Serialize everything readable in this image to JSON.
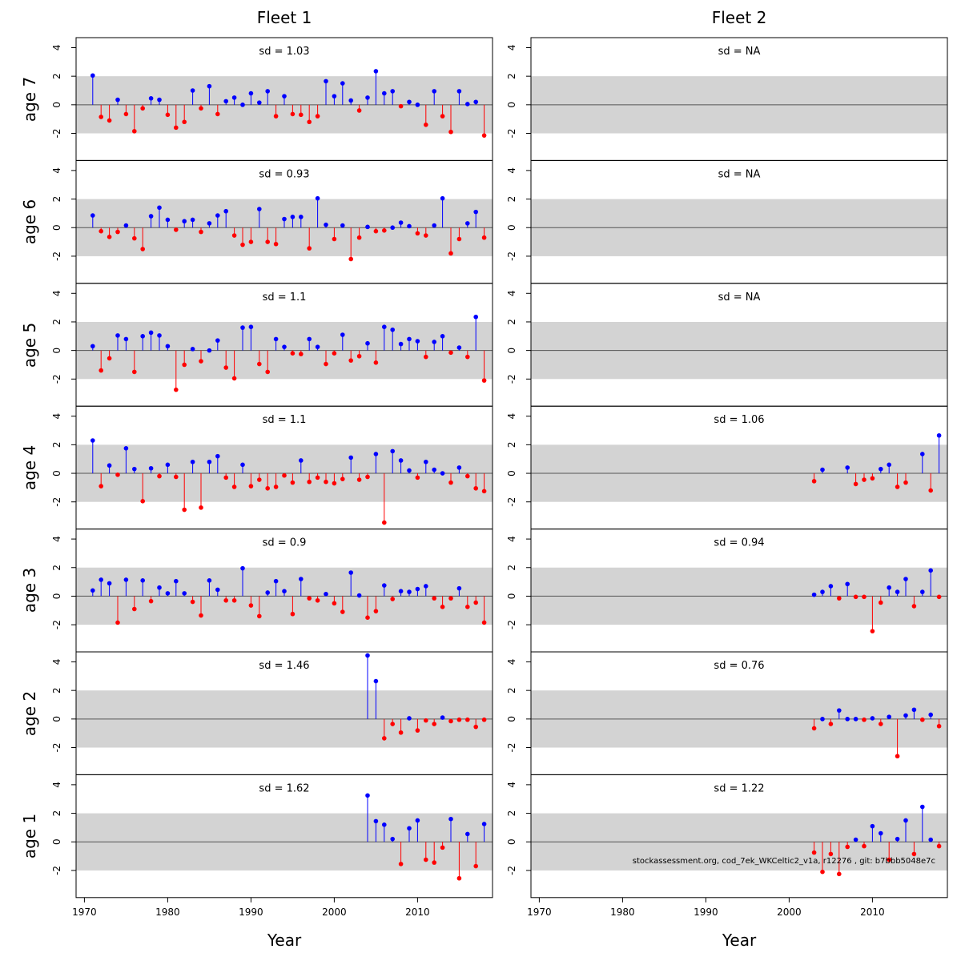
{
  "chart_data": {
    "type": "residual-lollipop-grid",
    "columns": [
      {
        "title": "Fleet 1"
      },
      {
        "title": "Fleet 2"
      }
    ],
    "rows": [
      "age 7",
      "age 6",
      "age 5",
      "age 4",
      "age 3",
      "age 2",
      "age 1"
    ],
    "xlabel": "Year",
    "xlim": [
      1969,
      2019
    ],
    "x_ticks": [
      1970,
      1980,
      1990,
      2000,
      2010
    ],
    "ylim": [
      -3.9,
      4.7
    ],
    "y_ticks": [
      -2,
      0,
      2,
      4
    ],
    "band": [
      -2,
      2
    ],
    "colors": {
      "positive": "#0000ff",
      "negative": "#ff0000",
      "band": "#d3d3d3"
    },
    "footer_text": "stockassessment.org, cod_7ek_WKCeltic2_v1a, r12276 , git: b7bbb5048e7c",
    "panels": [
      [
        {
          "sd_label": "sd = 1.03",
          "years": [
            1971,
            1972,
            1973,
            1974,
            1975,
            1976,
            1977,
            1978,
            1979,
            1980,
            1981,
            1982,
            1983,
            1984,
            1985,
            1986,
            1987,
            1988,
            1989,
            1990,
            1991,
            1992,
            1993,
            1994,
            1995,
            1996,
            1997,
            1998,
            1999,
            2000,
            2001,
            2002,
            2003,
            2004,
            2005,
            2006,
            2007,
            2008,
            2009,
            2010,
            2011,
            2012,
            2013,
            2014,
            2015,
            2016,
            2017,
            2018
          ],
          "values": [
            2.05,
            -0.85,
            -1.1,
            0.35,
            -0.65,
            -1.85,
            -0.25,
            0.45,
            0.35,
            -0.7,
            -1.6,
            -1.2,
            1.0,
            -0.25,
            1.3,
            -0.65,
            0.25,
            0.5,
            0.0,
            0.8,
            0.15,
            0.95,
            -0.8,
            0.6,
            -0.65,
            -0.7,
            -1.2,
            -0.8,
            1.65,
            0.6,
            1.5,
            0.3,
            -0.4,
            0.5,
            2.35,
            0.8,
            0.95,
            -0.1,
            0.2,
            0.0,
            -1.4,
            0.95,
            -0.8,
            -1.9,
            0.95,
            0.05,
            0.2,
            -2.15
          ]
        },
        {
          "sd_label": "sd = 0.93",
          "years": [
            1971,
            1972,
            1973,
            1974,
            1975,
            1976,
            1977,
            1978,
            1979,
            1980,
            1981,
            1982,
            1983,
            1984,
            1985,
            1986,
            1987,
            1988,
            1989,
            1990,
            1991,
            1992,
            1993,
            1994,
            1995,
            1996,
            1997,
            1998,
            1999,
            2000,
            2001,
            2002,
            2003,
            2004,
            2005,
            2006,
            2007,
            2008,
            2009,
            2010,
            2011,
            2012,
            2013,
            2014,
            2015,
            2016,
            2017,
            2018
          ],
          "values": [
            0.85,
            -0.25,
            -0.65,
            -0.3,
            0.15,
            -0.75,
            -1.5,
            0.8,
            1.4,
            0.55,
            -0.15,
            0.45,
            0.55,
            -0.3,
            0.3,
            0.85,
            1.15,
            -0.55,
            -1.2,
            -1.0,
            1.3,
            -1.0,
            -1.15,
            0.6,
            0.75,
            0.75,
            -1.45,
            2.05,
            0.2,
            -0.8,
            0.15,
            -2.2,
            -0.7,
            0.05,
            -0.25,
            -0.2,
            0.0,
            0.35,
            0.1,
            -0.4,
            -0.55,
            0.15,
            2.05,
            -1.8,
            -0.8,
            0.3,
            1.1,
            -0.7
          ]
        },
        {
          "sd_label": "sd = 1.1",
          "years": [
            1971,
            1972,
            1973,
            1974,
            1975,
            1976,
            1977,
            1978,
            1979,
            1980,
            1981,
            1982,
            1983,
            1984,
            1985,
            1986,
            1987,
            1988,
            1989,
            1990,
            1991,
            1992,
            1993,
            1994,
            1995,
            1996,
            1997,
            1998,
            1999,
            2000,
            2001,
            2002,
            2003,
            2004,
            2005,
            2006,
            2007,
            2008,
            2009,
            2010,
            2011,
            2012,
            2013,
            2014,
            2015,
            2016,
            2017,
            2018
          ],
          "values": [
            0.3,
            -1.4,
            -0.55,
            1.05,
            0.8,
            -1.5,
            1.0,
            1.25,
            1.05,
            0.3,
            -2.75,
            -1.0,
            0.1,
            -0.75,
            0.0,
            0.7,
            -1.2,
            -1.95,
            1.6,
            1.65,
            -0.95,
            -1.5,
            0.8,
            0.25,
            -0.2,
            -0.25,
            0.8,
            0.25,
            -0.95,
            -0.2,
            1.1,
            -0.7,
            -0.4,
            0.5,
            -0.85,
            1.65,
            1.45,
            0.45,
            0.8,
            0.65,
            -0.45,
            0.6,
            1.0,
            -0.15,
            0.2,
            -0.45,
            2.35,
            -2.1
          ]
        },
        {
          "sd_label": "sd = 1.1",
          "years": [
            1971,
            1972,
            1973,
            1974,
            1975,
            1976,
            1977,
            1978,
            1979,
            1980,
            1981,
            1982,
            1983,
            1984,
            1985,
            1986,
            1987,
            1988,
            1989,
            1990,
            1991,
            1992,
            1993,
            1994,
            1995,
            1996,
            1997,
            1998,
            1999,
            2000,
            2001,
            2002,
            2003,
            2004,
            2005,
            2006,
            2007,
            2008,
            2009,
            2010,
            2011,
            2012,
            2013,
            2014,
            2015,
            2016,
            2017,
            2018
          ],
          "values": [
            2.3,
            -0.9,
            0.55,
            -0.1,
            1.75,
            0.3,
            -1.95,
            0.35,
            -0.2,
            0.6,
            -0.25,
            -2.55,
            0.8,
            -2.4,
            0.8,
            1.2,
            -0.3,
            -0.95,
            0.6,
            -0.9,
            -0.45,
            -1.05,
            -0.95,
            -0.15,
            -0.65,
            0.9,
            -0.6,
            -0.3,
            -0.6,
            -0.7,
            -0.4,
            1.1,
            -0.45,
            -0.25,
            1.35,
            -3.45,
            1.55,
            0.9,
            0.2,
            -0.3,
            0.8,
            0.25,
            0.0,
            -0.65,
            0.4,
            -0.2,
            -1.05,
            -1.25
          ]
        },
        {
          "sd_label": "sd = 0.9",
          "years": [
            1971,
            1972,
            1973,
            1974,
            1975,
            1976,
            1977,
            1978,
            1979,
            1980,
            1981,
            1982,
            1983,
            1984,
            1985,
            1986,
            1987,
            1988,
            1989,
            1990,
            1991,
            1992,
            1993,
            1994,
            1995,
            1996,
            1997,
            1998,
            1999,
            2000,
            2001,
            2002,
            2003,
            2004,
            2005,
            2006,
            2007,
            2008,
            2009,
            2010,
            2011,
            2012,
            2013,
            2014,
            2015,
            2016,
            2017,
            2018
          ],
          "values": [
            0.4,
            1.15,
            0.9,
            -1.85,
            1.15,
            -0.9,
            1.1,
            -0.35,
            0.6,
            0.2,
            1.05,
            0.2,
            -0.4,
            -1.35,
            1.1,
            0.45,
            -0.3,
            -0.3,
            1.95,
            -0.65,
            -1.4,
            0.25,
            1.05,
            0.35,
            -1.25,
            1.2,
            -0.15,
            -0.3,
            0.15,
            -0.5,
            -1.1,
            1.65,
            0.05,
            -1.5,
            -1.05,
            0.75,
            -0.2,
            0.35,
            0.3,
            0.5,
            0.7,
            -0.15,
            -0.75,
            -0.15,
            0.55,
            -0.75,
            -0.45,
            -1.85
          ]
        },
        {
          "sd_label": "sd = 1.46",
          "years": [
            2004,
            2005,
            2006,
            2007,
            2008,
            2009,
            2010,
            2011,
            2012,
            2013,
            2014,
            2015,
            2016,
            2017,
            2018
          ],
          "values": [
            4.45,
            2.65,
            -1.35,
            -0.35,
            -0.95,
            0.05,
            -0.8,
            -0.1,
            -0.35,
            0.1,
            -0.15,
            -0.05,
            -0.05,
            -0.55,
            -0.05
          ]
        },
        {
          "sd_label": "sd = 1.62",
          "years": [
            2004,
            2005,
            2006,
            2007,
            2008,
            2009,
            2010,
            2011,
            2012,
            2013,
            2014,
            2015,
            2016,
            2017,
            2018
          ],
          "values": [
            3.25,
            1.45,
            1.2,
            0.2,
            -1.55,
            0.95,
            1.5,
            -1.25,
            -1.45,
            -0.4,
            1.6,
            -2.55,
            0.55,
            -1.7,
            1.25
          ]
        }
      ],
      [
        {
          "sd_label": "sd = NA",
          "years": [],
          "values": []
        },
        {
          "sd_label": "sd = NA",
          "years": [],
          "values": []
        },
        {
          "sd_label": "sd = NA",
          "years": [],
          "values": []
        },
        {
          "sd_label": "sd = 1.06",
          "years": [
            2003,
            2004,
            2007,
            2008,
            2009,
            2010,
            2011,
            2012,
            2013,
            2014,
            2016,
            2017,
            2018
          ],
          "values": [
            -0.55,
            0.25,
            0.4,
            -0.75,
            -0.45,
            -0.35,
            0.3,
            0.6,
            -0.95,
            -0.65,
            1.35,
            -1.2,
            2.65
          ]
        },
        {
          "sd_label": "sd = 0.94",
          "years": [
            2003,
            2004,
            2005,
            2006,
            2007,
            2008,
            2009,
            2010,
            2011,
            2012,
            2013,
            2014,
            2015,
            2016,
            2017,
            2018
          ],
          "values": [
            0.1,
            0.3,
            0.7,
            -0.15,
            0.85,
            -0.05,
            -0.05,
            -2.45,
            -0.45,
            0.6,
            0.3,
            1.2,
            -0.7,
            0.3,
            1.8,
            -0.05
          ]
        },
        {
          "sd_label": "sd = 0.76",
          "years": [
            2003,
            2004,
            2005,
            2006,
            2007,
            2008,
            2009,
            2010,
            2011,
            2012,
            2013,
            2014,
            2015,
            2016,
            2017,
            2018
          ],
          "values": [
            -0.65,
            0.0,
            -0.35,
            0.6,
            0.0,
            0.0,
            -0.05,
            0.05,
            -0.35,
            0.15,
            -2.6,
            0.25,
            0.65,
            -0.05,
            0.3,
            -0.5
          ]
        },
        {
          "sd_label": "sd = 1.22",
          "years": [
            2003,
            2004,
            2005,
            2006,
            2007,
            2008,
            2009,
            2010,
            2011,
            2012,
            2013,
            2014,
            2015,
            2016,
            2017,
            2018
          ],
          "values": [
            -0.75,
            -2.1,
            -0.85,
            -2.25,
            -0.35,
            0.15,
            -0.3,
            1.1,
            0.6,
            -1.25,
            0.2,
            1.5,
            -0.85,
            2.45,
            0.15,
            -0.3
          ]
        }
      ]
    ]
  }
}
